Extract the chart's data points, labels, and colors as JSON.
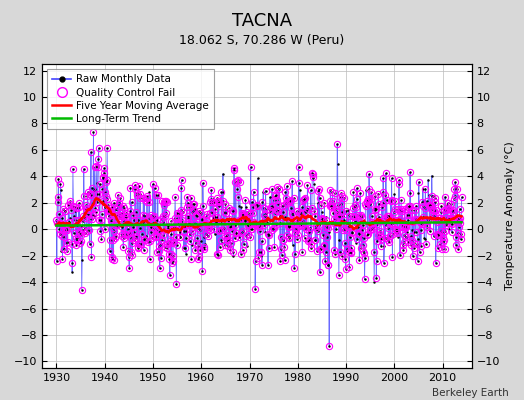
{
  "title": "TACNA",
  "subtitle": "18.062 S, 70.286 W (Peru)",
  "credit": "Berkeley Earth",
  "ylabel": "Temperature Anomaly (°C)",
  "xlim": [
    1927,
    2016
  ],
  "ylim": [
    -10.5,
    12.5
  ],
  "yticks": [
    -10,
    -8,
    -6,
    -4,
    -2,
    0,
    2,
    4,
    6,
    8,
    10,
    12
  ],
  "xticks": [
    1930,
    1940,
    1950,
    1960,
    1970,
    1980,
    1990,
    2000,
    2010
  ],
  "seed": 17,
  "raw_color": "#4444ff",
  "qc_color": "#ff00ff",
  "ma_color": "#ff0000",
  "trend_color": "#00bb00",
  "background_color": "#d8d8d8",
  "plot_bg_color": "#ffffff",
  "start_year": 1930,
  "end_year": 2014
}
